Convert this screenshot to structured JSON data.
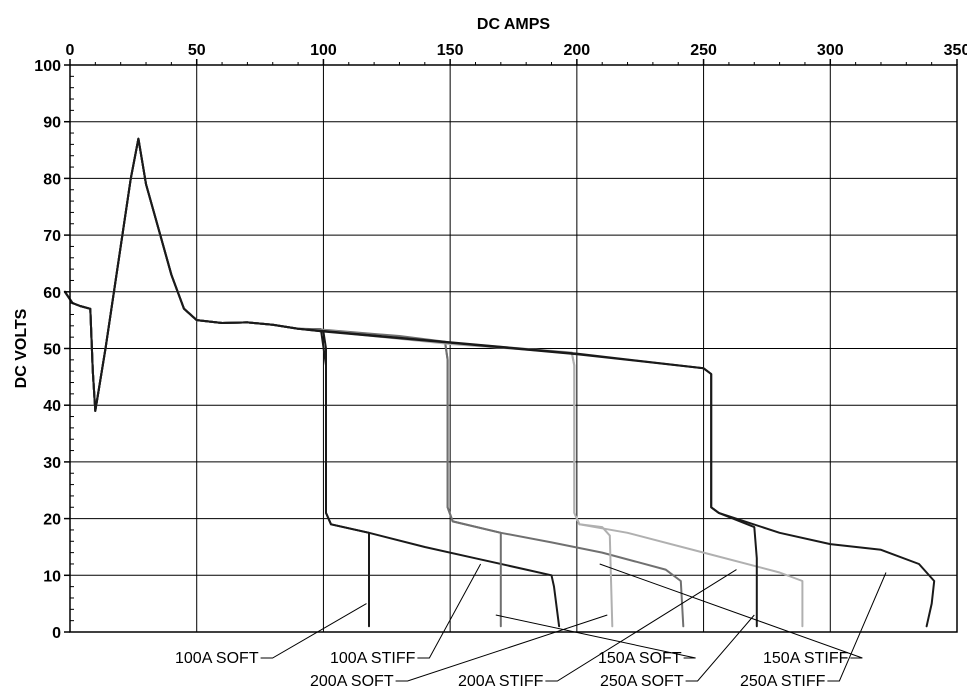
{
  "chart_data": {
    "type": "line",
    "xlabel": "DC AMPS",
    "ylabel": "DC VOLTS",
    "xlim": [
      0,
      350
    ],
    "ylim": [
      0,
      100
    ],
    "x_ticks": [
      "0",
      "50",
      "100",
      "150",
      "200",
      "250",
      "300",
      "350"
    ],
    "y_ticks": [
      "0",
      "10",
      "20",
      "30",
      "40",
      "50",
      "60",
      "70",
      "80",
      "90",
      "100"
    ],
    "grid": true,
    "colors": {
      "dark": "#1a1a1a",
      "mid": "#707070",
      "light": "#b0b0b0"
    },
    "common_start": [
      [
        -2,
        60
      ],
      [
        1,
        58
      ],
      [
        4,
        57.5
      ],
      [
        8,
        57
      ],
      [
        9,
        46
      ],
      [
        10,
        39
      ],
      [
        14,
        50
      ],
      [
        20,
        68
      ],
      [
        24,
        80
      ],
      [
        27,
        87
      ],
      [
        30,
        79
      ],
      [
        35,
        71
      ],
      [
        40,
        63
      ],
      [
        45,
        57
      ],
      [
        50,
        55
      ],
      [
        60,
        54.5
      ],
      [
        70,
        54.6
      ],
      [
        80,
        54.2
      ],
      [
        90,
        53.5
      ]
    ],
    "series": [
      {
        "name": "100A SOFT",
        "color": "dark",
        "points": [
          [
            100,
            53
          ],
          [
            101,
            50
          ],
          [
            101,
            21
          ],
          [
            103,
            19
          ],
          [
            118,
            17.5
          ],
          [
            118,
            1
          ]
        ]
      },
      {
        "name": "100A STIFF",
        "color": "dark",
        "points": [
          [
            99,
            53.4
          ],
          [
            101,
            47
          ],
          [
            101,
            21
          ],
          [
            103,
            19
          ],
          [
            118,
            17.5
          ],
          [
            140,
            15
          ],
          [
            160,
            13
          ],
          [
            180,
            11
          ],
          [
            190,
            10
          ],
          [
            191,
            8
          ],
          [
            193,
            1
          ]
        ]
      },
      {
        "name": "150A SOFT",
        "color": "mid",
        "points": [
          [
            100,
            53.2
          ],
          [
            130,
            52
          ],
          [
            148,
            51
          ],
          [
            149,
            48
          ],
          [
            149,
            22
          ],
          [
            151,
            19.5
          ],
          [
            170,
            17.5
          ],
          [
            170,
            1
          ]
        ]
      },
      {
        "name": "150A STIFF",
        "color": "mid",
        "points": [
          [
            100,
            53.3
          ],
          [
            130,
            52.2
          ],
          [
            148,
            51.2
          ],
          [
            149,
            48
          ],
          [
            149,
            22
          ],
          [
            151,
            19.5
          ],
          [
            170,
            17.5
          ],
          [
            190,
            15.8
          ],
          [
            210,
            14
          ],
          [
            235,
            11
          ],
          [
            241,
            9
          ],
          [
            242,
            1
          ]
        ]
      },
      {
        "name": "200A SOFT",
        "color": "light",
        "points": [
          [
            100,
            53.1
          ],
          [
            150,
            50.8
          ],
          [
            198,
            49.2
          ],
          [
            199,
            47
          ],
          [
            199,
            21
          ],
          [
            201,
            19
          ],
          [
            210,
            18.5
          ],
          [
            213,
            17
          ],
          [
            214,
            1
          ]
        ]
      },
      {
        "name": "200A STIFF",
        "color": "light",
        "points": [
          [
            100,
            53.2
          ],
          [
            150,
            51
          ],
          [
            198,
            49.3
          ],
          [
            199,
            47
          ],
          [
            199,
            21
          ],
          [
            201,
            19
          ],
          [
            220,
            17.5
          ],
          [
            250,
            14
          ],
          [
            280,
            10.5
          ],
          [
            289,
            9
          ],
          [
            289,
            1
          ]
        ]
      },
      {
        "name": "250A SOFT",
        "color": "dark",
        "points": [
          [
            100,
            53
          ],
          [
            150,
            51
          ],
          [
            200,
            49
          ],
          [
            250,
            46.5
          ],
          [
            253,
            45.5
          ],
          [
            253,
            22
          ],
          [
            256,
            21
          ],
          [
            270,
            18.5
          ],
          [
            271,
            13
          ],
          [
            271,
            1
          ]
        ]
      },
      {
        "name": "250A STIFF",
        "color": "dark",
        "points": [
          [
            100,
            53.1
          ],
          [
            150,
            51.1
          ],
          [
            200,
            49.1
          ],
          [
            250,
            46.5
          ],
          [
            253,
            45.5
          ],
          [
            253,
            22
          ],
          [
            256,
            21
          ],
          [
            280,
            17.5
          ],
          [
            300,
            15.5
          ],
          [
            320,
            14.5
          ],
          [
            335,
            12
          ],
          [
            341,
            9
          ],
          [
            340,
            5
          ],
          [
            338,
            1
          ]
        ]
      }
    ],
    "callouts": [
      {
        "label": "100A SOFT",
        "at": [
          117,
          5
        ],
        "side": "left"
      },
      {
        "label": "100A STIFF",
        "at": [
          162,
          12
        ],
        "side": "left"
      },
      {
        "label": "150A SOFT",
        "at": [
          168,
          3
        ],
        "side": "left"
      },
      {
        "label": "150A STIFF",
        "at": [
          209,
          12
        ],
        "side": "left"
      },
      {
        "label": "200A SOFT",
        "at": [
          212,
          3
        ],
        "side": "left"
      },
      {
        "label": "200A STIFF",
        "at": [
          263,
          11
        ],
        "side": "left"
      },
      {
        "label": "250A SOFT",
        "at": [
          270,
          3
        ],
        "side": "left"
      },
      {
        "label": "250A STIFF",
        "at": [
          322,
          10.5
        ],
        "side": "left"
      }
    ]
  }
}
